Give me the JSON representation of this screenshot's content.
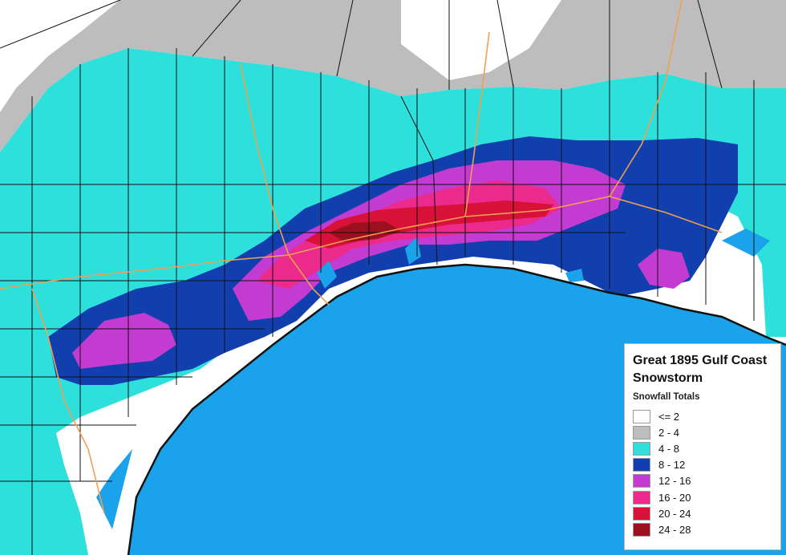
{
  "map": {
    "colors": {
      "ocean": "#1aa2ea",
      "bay": "#1aa2ea",
      "county_line": "#111111",
      "highway": "#f0a050"
    }
  },
  "legend": {
    "title": "Great 1895 Gulf Coast Snowstorm",
    "subtitle": "Snowfall Totals",
    "items": [
      {
        "label": "<= 2",
        "color": "#ffffff"
      },
      {
        "label": "2 - 4",
        "color": "#bdbdbd"
      },
      {
        "label": "4 - 8",
        "color": "#2ee0dc"
      },
      {
        "label": "8 - 12",
        "color": "#123fae"
      },
      {
        "label": "12 - 16",
        "color": "#c43bd2"
      },
      {
        "label": "16 - 20",
        "color": "#eb2a8c"
      },
      {
        "label": "20 - 24",
        "color": "#d81138"
      },
      {
        "label": "24 - 28",
        "color": "#9c0f1e"
      }
    ]
  }
}
